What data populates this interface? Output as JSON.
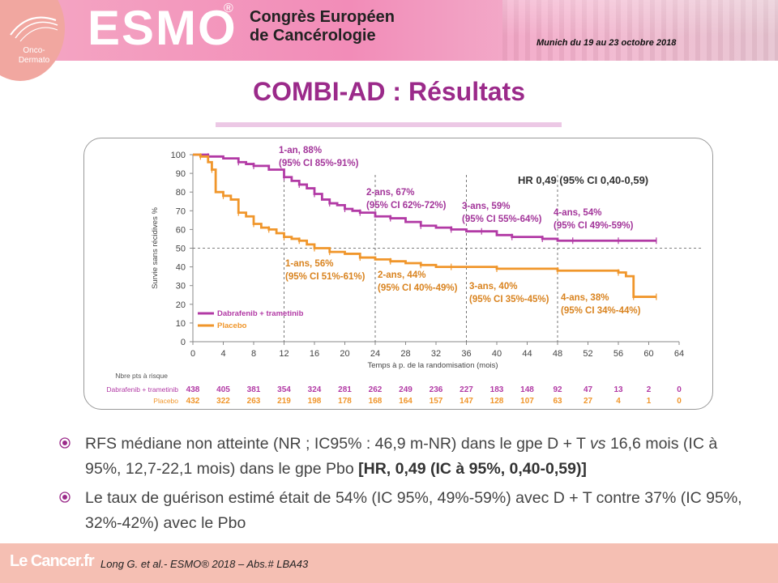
{
  "header": {
    "logo": "ESMO",
    "reg_mark": "®",
    "congress_line1": "Congrès Européen",
    "congress_line2": "de Cancérologie",
    "dates": "Munich du 19 au 23 octobre 2018",
    "badge_line1": "Onco-",
    "badge_line2": "Dermato"
  },
  "title": "COMBI-AD : Résultats",
  "colors": {
    "dt": "#b23aa5",
    "placebo": "#f0962b",
    "title": "#9b2a8a",
    "dt_label": "#a3359a",
    "pbo_label": "#d9831f"
  },
  "chart_data": {
    "type": "line",
    "ylabel": "Survie sans récidives %",
    "xlabel": "Temps à p. de la randomisation (mois)",
    "xlim": [
      0,
      64
    ],
    "ylim": [
      0,
      100
    ],
    "xticks": [
      0,
      4,
      8,
      12,
      16,
      20,
      24,
      28,
      32,
      36,
      40,
      44,
      48,
      52,
      56,
      60,
      64
    ],
    "yticks": [
      0,
      10,
      20,
      30,
      40,
      50,
      60,
      70,
      80,
      90,
      100
    ],
    "hr_text": "HR 0,49 (95% CI 0,40-0,59)",
    "reference_line_y": 50,
    "reference_lines_x": [
      12,
      24,
      36,
      48
    ],
    "legend_position": "bottom-left",
    "series": [
      {
        "name": "Dabrafenib + trametinib",
        "color": "#b23aa5",
        "x": [
          0,
          2,
          4,
          6,
          7,
          8,
          10,
          12,
          13,
          14,
          15,
          16,
          17,
          18,
          19,
          20,
          21,
          22,
          24,
          26,
          28,
          30,
          32,
          34,
          36,
          38,
          40,
          42,
          44,
          46,
          48,
          50,
          52,
          56,
          60,
          61
        ],
        "y": [
          100,
          99,
          98,
          96,
          95,
          94,
          92,
          88,
          86,
          84,
          82,
          79,
          76,
          74,
          73,
          71,
          70,
          69,
          67,
          66,
          64,
          62,
          61,
          60,
          59,
          59,
          57,
          56,
          56,
          55,
          54,
          54,
          54,
          54,
          54,
          54
        ]
      },
      {
        "name": "Placebo",
        "color": "#f0962b",
        "x": [
          0,
          1,
          2,
          2.5,
          3,
          4,
          5,
          6,
          7,
          8,
          9,
          10,
          11,
          12,
          13,
          14,
          15,
          16,
          17,
          18,
          20,
          22,
          24,
          26,
          28,
          30,
          32,
          34,
          36,
          40,
          44,
          48,
          52,
          56,
          57,
          58,
          60,
          61
        ],
        "y": [
          100,
          99,
          96,
          92,
          80,
          78,
          76,
          69,
          67,
          63,
          61,
          60,
          58,
          56,
          55,
          54,
          52,
          50,
          50,
          48,
          47,
          45,
          44,
          43,
          42,
          41,
          40,
          40,
          40,
          39,
          39,
          38,
          38,
          37,
          35,
          24,
          24,
          24
        ]
      }
    ],
    "annotations": [
      {
        "series": "dt",
        "x": 12,
        "line1": "1-an, 88%",
        "line2": "(95% CI 85%-91%)"
      },
      {
        "series": "dt",
        "x": 24,
        "line1": "2-ans, 67%",
        "line2": "(95% CI 62%-72%)"
      },
      {
        "series": "dt",
        "x": 36,
        "line1": "3-ans, 59%",
        "line2": "(95% CI 55%-64%)"
      },
      {
        "series": "dt",
        "x": 48,
        "line1": "4-ans, 54%",
        "line2": "(95% CI 49%-59%)"
      },
      {
        "series": "pbo",
        "x": 12,
        "line1": "1-ans, 56%",
        "line2": "(95% CI 51%-61%)"
      },
      {
        "series": "pbo",
        "x": 24,
        "line1": "2-ans, 44%",
        "line2": "(95% CI 40%-49%)"
      },
      {
        "series": "pbo",
        "x": 36,
        "line1": "3-ans, 40%",
        "line2": "(95% CI 35%-45%)"
      },
      {
        "series": "pbo",
        "x": 48,
        "line1": "4-ans, 38%",
        "line2": "(95% CI 34%-44%)"
      }
    ],
    "risk_table": {
      "title": "Nbre pts à risque",
      "rows": [
        {
          "label": "Dabrafenib + trametinib",
          "color": "#b23aa5",
          "values": [
            438,
            405,
            381,
            354,
            324,
            281,
            262,
            249,
            236,
            227,
            183,
            148,
            92,
            47,
            13,
            2,
            0
          ]
        },
        {
          "label": "Placebo",
          "color": "#f0962b",
          "values": [
            432,
            322,
            263,
            219,
            198,
            178,
            168,
            164,
            157,
            147,
            128,
            107,
            63,
            27,
            4,
            1,
            0
          ]
        }
      ]
    }
  },
  "bullets": {
    "b1_pre": "RFS médiane non atteinte (NR ; IC95% : 46,9 m-NR) dans le gpe D + T ",
    "b1_vs": "vs",
    "b1_mid": " 16,6 mois (IC à 95%, 12,7-22,1 mois) dans le gpe Pbo ",
    "b1_bold": "[HR, 0,49 (IC à 95%, 0,40-0,59)]",
    "b2": "Le taux de guérison estimé était de 54% (IC 95%, 49%-59%) avec D + T contre 37% (IC 95%, 32%-42%) avec le Pbo"
  },
  "footer": {
    "logo": "Le Cancer.fr",
    "reference": "Long G. et al.- ESMO® 2018 – Abs.# LBA43"
  }
}
